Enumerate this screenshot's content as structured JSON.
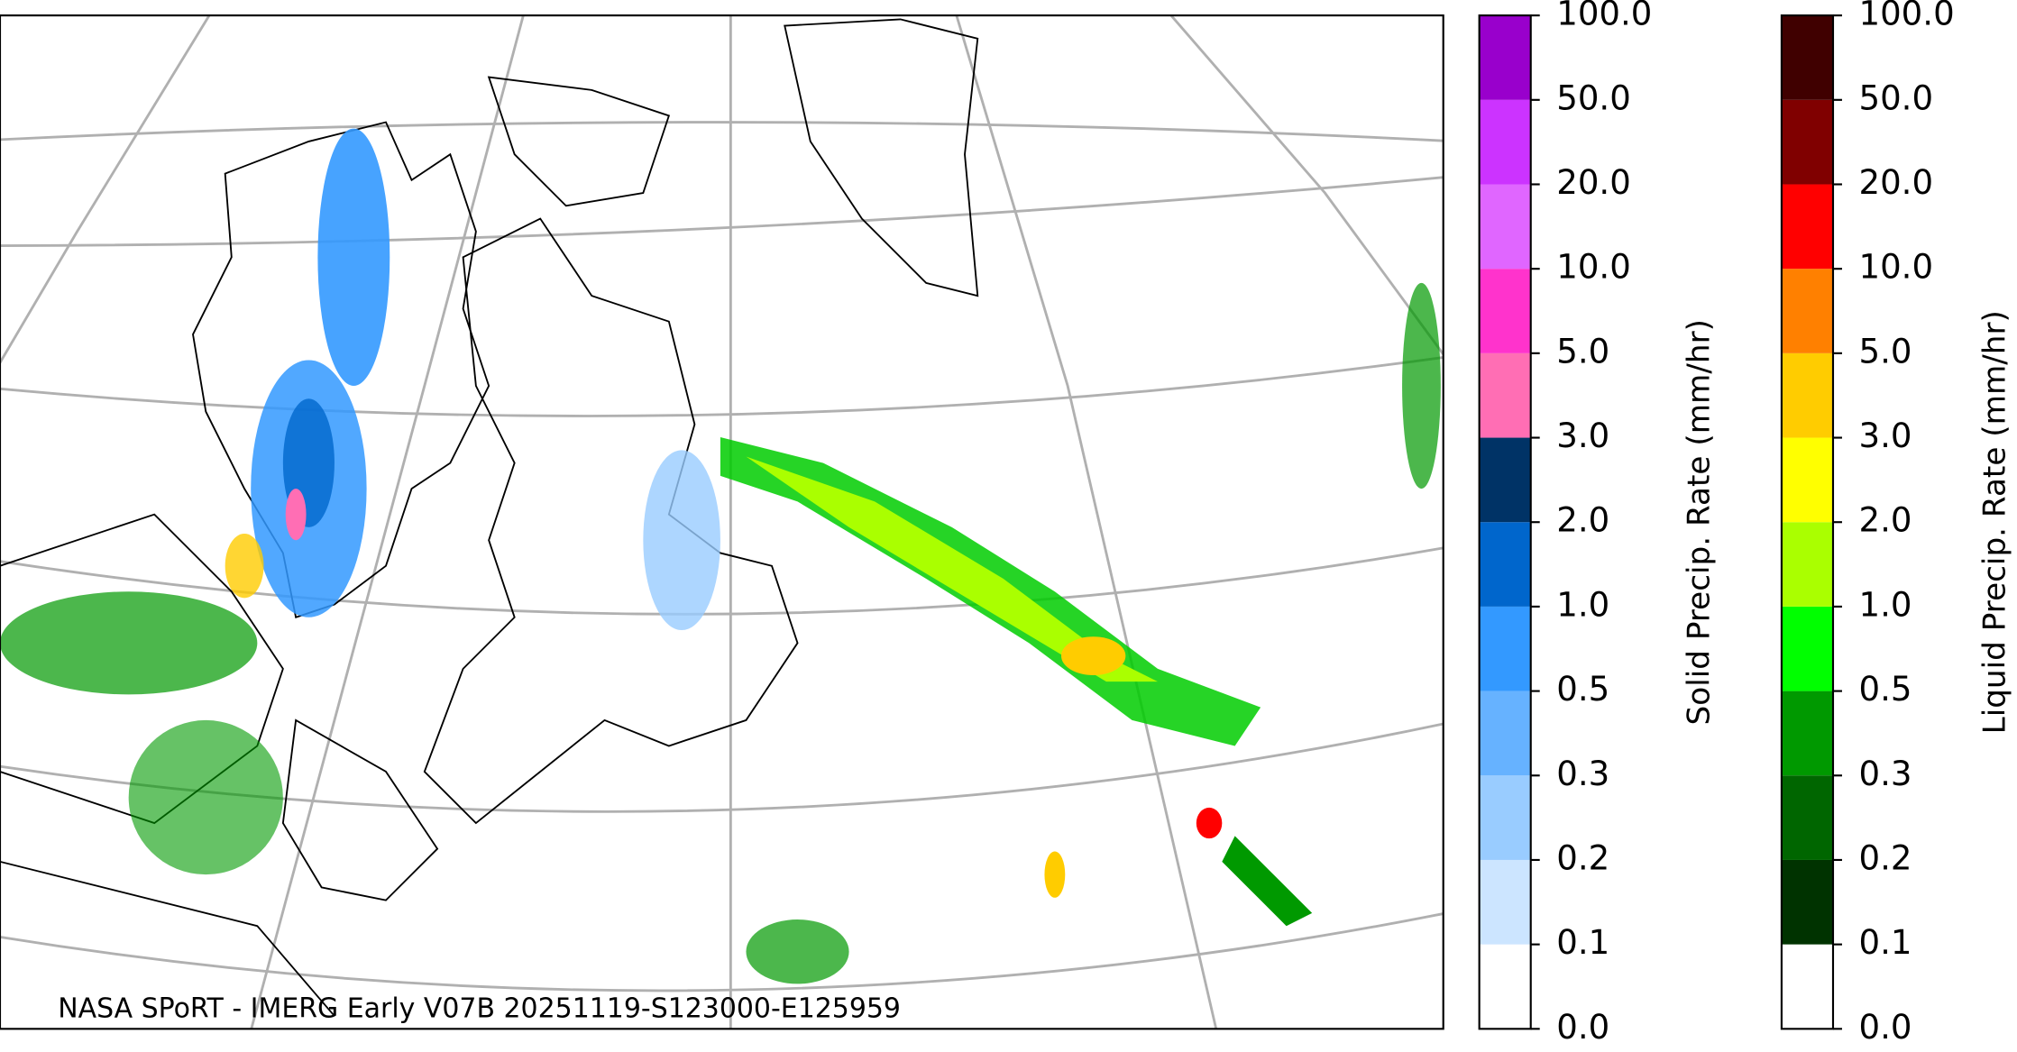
{
  "map": {
    "caption": "NASA SPoRT - IMERG Early V07B 20251119-S123000-E125959",
    "colorbars": [
      {
        "label": "Solid Precip. Rate (mm/hr)",
        "ticks": [
          {
            "value": 0,
            "label": "0.0"
          },
          {
            "value": 0.1,
            "label": "0.1"
          },
          {
            "value": 0.2,
            "label": "0.2"
          },
          {
            "value": 0.3,
            "label": "0.3"
          },
          {
            "value": 0.5,
            "label": "0.5"
          },
          {
            "value": 1,
            "label": "1.0"
          },
          {
            "value": 2,
            "label": "2.0"
          },
          {
            "value": 3,
            "label": "3.0"
          },
          {
            "value": 5,
            "label": "5.0"
          },
          {
            "value": 10,
            "label": "10.0"
          },
          {
            "value": 20,
            "label": "20.0"
          },
          {
            "value": 50,
            "label": "50.0"
          },
          {
            "value": 100,
            "label": "100.0"
          }
        ],
        "colors": [
          "#ffffff",
          "#cce5ff",
          "#99ccff",
          "#66b2ff",
          "#3399ff",
          "#0066cc",
          "#003366",
          "#ff6eb4",
          "#ff33cc",
          "#e066ff",
          "#cc33ff",
          "#9900cc"
        ]
      },
      {
        "label": "Liquid Precip. Rate (mm/hr)",
        "ticks": [
          {
            "value": 0,
            "label": "0.0"
          },
          {
            "value": 0.1,
            "label": "0.1"
          },
          {
            "value": 0.2,
            "label": "0.2"
          },
          {
            "value": 0.3,
            "label": "0.3"
          },
          {
            "value": 0.5,
            "label": "0.5"
          },
          {
            "value": 1,
            "label": "1.0"
          },
          {
            "value": 2,
            "label": "2.0"
          },
          {
            "value": 3,
            "label": "3.0"
          },
          {
            "value": 5,
            "label": "5.0"
          },
          {
            "value": 10,
            "label": "10.0"
          },
          {
            "value": 20,
            "label": "20.0"
          },
          {
            "value": 50,
            "label": "50.0"
          },
          {
            "value": 100,
            "label": "100.0"
          }
        ],
        "colors": [
          "#ffffff",
          "#003300",
          "#006600",
          "#009900",
          "#00ff00",
          "#aaff00",
          "#ffff00",
          "#ffcc00",
          "#ff8000",
          "#ff0000",
          "#800000",
          "#400000"
        ]
      }
    ]
  }
}
